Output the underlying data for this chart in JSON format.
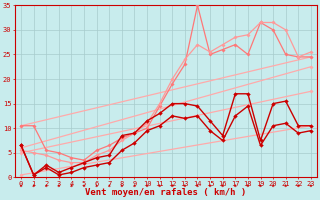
{
  "xlabel": "Vent moyen/en rafales ( km/h )",
  "bg_color": "#c8eced",
  "grid_color": "#a8cccd",
  "axis_color": "#cc0000",
  "xlim": [
    -0.5,
    23.5
  ],
  "ylim": [
    0,
    35
  ],
  "xticks": [
    0,
    1,
    2,
    3,
    4,
    5,
    6,
    7,
    8,
    9,
    10,
    11,
    12,
    13,
    14,
    15,
    16,
    17,
    18,
    19,
    20,
    21,
    22,
    23
  ],
  "yticks": [
    0,
    5,
    10,
    15,
    20,
    25,
    30,
    35
  ],
  "tick_fontsize": 5,
  "xlabel_fontsize": 6.5,
  "tick_color": "#cc0000",
  "xlabel_color": "#cc0000",
  "series_light": [
    {
      "x": [
        0,
        23
      ],
      "y": [
        10.5,
        24.5
      ],
      "color": "#ffaaaa",
      "linewidth": 0.9,
      "marker": "D",
      "markersize": 1.8,
      "linestyle": "-"
    },
    {
      "x": [
        0,
        23
      ],
      "y": [
        6.0,
        22.5
      ],
      "color": "#ffaaaa",
      "linewidth": 0.9,
      "marker": "D",
      "markersize": 1.8,
      "linestyle": "-"
    },
    {
      "x": [
        0,
        23
      ],
      "y": [
        5.0,
        17.5
      ],
      "color": "#ffaaaa",
      "linewidth": 0.9,
      "marker": "D",
      "markersize": 1.8,
      "linestyle": "-"
    },
    {
      "x": [
        0,
        23
      ],
      "y": [
        0.5,
        10.5
      ],
      "color": "#ffaaaa",
      "linewidth": 0.9,
      "marker": "D",
      "markersize": 1.8,
      "linestyle": "-"
    }
  ],
  "series_dark": [
    {
      "x": [
        0,
        1,
        2,
        3,
        4,
        5,
        6,
        7,
        8,
        9,
        10,
        11,
        12,
        13,
        14,
        15,
        16,
        17,
        18,
        19,
        20,
        21,
        22,
        23
      ],
      "y": [
        6.5,
        0.5,
        2.5,
        1.0,
        2.0,
        3.0,
        4.0,
        4.5,
        8.5,
        9.0,
        11.5,
        13.0,
        15.0,
        15.0,
        14.5,
        11.5,
        8.5,
        17.0,
        17.0,
        7.5,
        15.0,
        15.5,
        10.5,
        10.5
      ],
      "color": "#cc0000",
      "linewidth": 1.0,
      "marker": "D",
      "markersize": 2.0
    },
    {
      "x": [
        0,
        1,
        2,
        3,
        4,
        5,
        6,
        7,
        8,
        9,
        10,
        11,
        12,
        13,
        14,
        15,
        16,
        17,
        18,
        19,
        20,
        21,
        22,
        23
      ],
      "y": [
        6.5,
        0.5,
        2.0,
        0.5,
        1.0,
        2.0,
        2.5,
        3.0,
        5.5,
        7.0,
        9.5,
        10.5,
        12.5,
        12.0,
        12.5,
        9.5,
        7.5,
        12.5,
        14.5,
        6.5,
        10.5,
        11.0,
        9.0,
        9.5
      ],
      "color": "#cc0000",
      "linewidth": 1.0,
      "marker": "D",
      "markersize": 2.0
    }
  ],
  "series_medium": [
    {
      "x": [
        0,
        1,
        2,
        3,
        4,
        5,
        6,
        7,
        8,
        9,
        10,
        11,
        12,
        13,
        14,
        15,
        16,
        17,
        18,
        19,
        20,
        21,
        22,
        23
      ],
      "y": [
        10.5,
        10.5,
        5.5,
        5.0,
        4.0,
        3.5,
        5.5,
        6.5,
        8.0,
        9.0,
        10.0,
        14.5,
        19.0,
        23.0,
        35.0,
        25.0,
        26.0,
        27.0,
        25.0,
        31.5,
        30.0,
        25.0,
        24.5,
        24.5
      ],
      "color": "#ff7777",
      "linewidth": 0.9,
      "marker": "D",
      "markersize": 1.8
    },
    {
      "x": [
        0,
        1,
        2,
        3,
        4,
        5,
        6,
        7,
        8,
        9,
        10,
        11,
        12,
        13,
        14,
        15,
        16,
        17,
        18,
        19,
        20,
        21,
        22,
        23
      ],
      "y": [
        5.5,
        5.0,
        4.5,
        3.5,
        3.0,
        3.0,
        4.5,
        5.5,
        7.5,
        9.0,
        11.0,
        15.0,
        20.0,
        24.0,
        27.0,
        25.5,
        27.0,
        28.5,
        29.0,
        31.5,
        31.5,
        30.0,
        24.5,
        25.5
      ],
      "color": "#ff9999",
      "linewidth": 0.9,
      "marker": "D",
      "markersize": 1.8
    }
  ]
}
